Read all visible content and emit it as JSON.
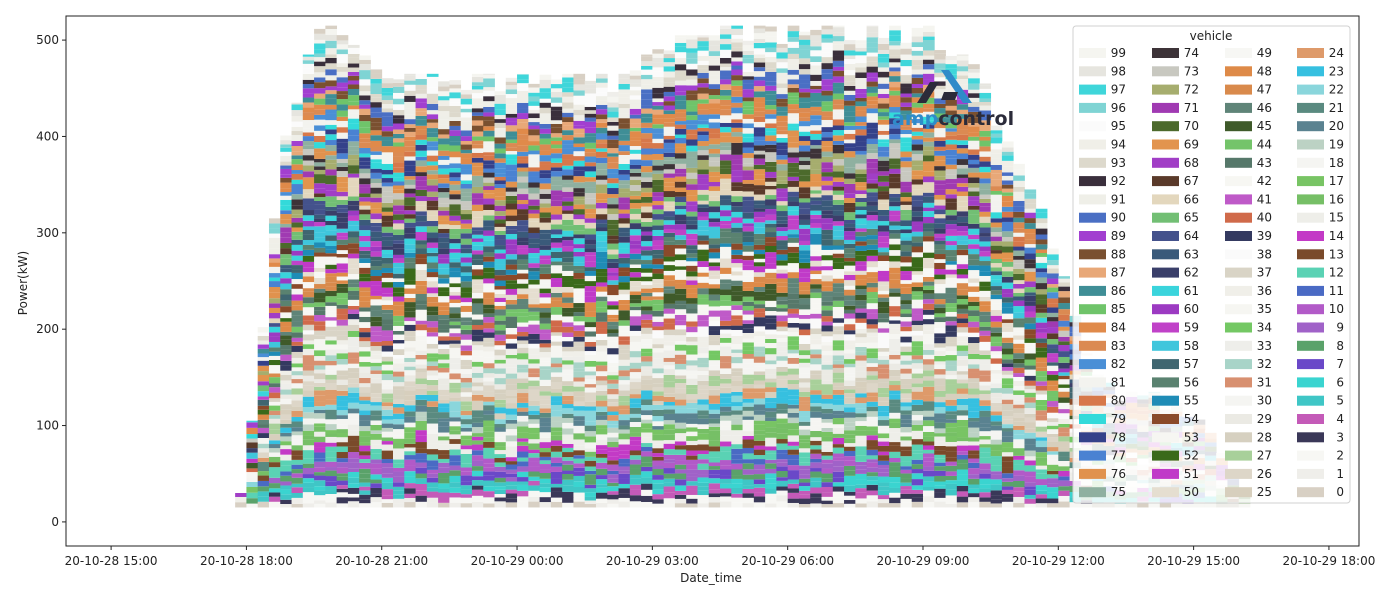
{
  "logo": {
    "text_amp": "amp",
    "text_control": "control",
    "color_dark": "#2b2b3a",
    "color_blue": "#2f8bc9"
  },
  "chart_data": {
    "type": "area",
    "stacked": true,
    "xlabel": "Date_time",
    "ylabel": "Power(kW)",
    "ylim": [
      -25,
      525
    ],
    "yticks": [
      0,
      100,
      200,
      300,
      400,
      500
    ],
    "xlim": [
      "2020-10-28 14:00",
      "2020-10-29 18:40"
    ],
    "xticks": [
      {
        "t": "2020-10-28 15:00",
        "label": "20-10-28 15:00"
      },
      {
        "t": "2020-10-28 18:00",
        "label": "20-10-28 18:00"
      },
      {
        "t": "2020-10-28 21:00",
        "label": "20-10-28 21:00"
      },
      {
        "t": "2020-10-29 00:00",
        "label": "20-10-29 00:00"
      },
      {
        "t": "2020-10-29 03:00",
        "label": "20-10-29 03:00"
      },
      {
        "t": "2020-10-29 06:00",
        "label": "20-10-29 06:00"
      },
      {
        "t": "2020-10-29 09:00",
        "label": "20-10-29 09:00"
      },
      {
        "t": "2020-10-29 12:00",
        "label": "20-10-29 12:00"
      },
      {
        "t": "2020-10-29 15:00",
        "label": "20-10-29 15:00"
      },
      {
        "t": "2020-10-29 18:00",
        "label": "20-10-29 18:00"
      }
    ],
    "time_step": "15 min",
    "profile_start": "2020-10-28 17:45",
    "total_profile": [
      15,
      90,
      190,
      300,
      390,
      420,
      470,
      500,
      500,
      495,
      480,
      470,
      460,
      455,
      450,
      450,
      450,
      450,
      450,
      450,
      450,
      450,
      450,
      450,
      450,
      450,
      450,
      450,
      450,
      450,
      450,
      450,
      450,
      450,
      450,
      460,
      470,
      480,
      490,
      490,
      490,
      490,
      490,
      500,
      500,
      500,
      500,
      500,
      500,
      500,
      500,
      500,
      500,
      500,
      500,
      500,
      500,
      500,
      500,
      500,
      500,
      500,
      490,
      480,
      470,
      460,
      440,
      400,
      380,
      360,
      330,
      310,
      270,
      240,
      200,
      160,
      140,
      130,
      120,
      120,
      120,
      120,
      110,
      110,
      100,
      100,
      80,
      60,
      40,
      20
    ],
    "legend": {
      "title": "vehicle",
      "placement": "upper right",
      "columns": 4,
      "entries": [
        "99",
        "98",
        "97",
        "96",
        "95",
        "94",
        "93",
        "92",
        "91",
        "90",
        "89",
        "88",
        "87",
        "86",
        "85",
        "84",
        "83",
        "82",
        "81",
        "80",
        "79",
        "78",
        "77",
        "76",
        "75",
        "74",
        "73",
        "72",
        "71",
        "70",
        "69",
        "68",
        "67",
        "66",
        "65",
        "64",
        "63",
        "62",
        "61",
        "60",
        "59",
        "58",
        "57",
        "56",
        "55",
        "54",
        "53",
        "52",
        "51",
        "50",
        "49",
        "48",
        "47",
        "46",
        "45",
        "44",
        "43",
        "42",
        "41",
        "40",
        "39",
        "38",
        "37",
        "36",
        "35",
        "34",
        "33",
        "32",
        "31",
        "30",
        "29",
        "28",
        "27",
        "26",
        "25",
        "24",
        "23",
        "22",
        "21",
        "20",
        "19",
        "18",
        "17",
        "16",
        "15",
        "14",
        "13",
        "12",
        "11",
        "10",
        "9",
        "8",
        "7",
        "6",
        "5",
        "4",
        "3",
        "2",
        "1",
        "0"
      ]
    },
    "vehicle_colors": {
      "99": "#f5f5f0",
      "98": "#e6e5df",
      "97": "#3fd6da",
      "96": "#7fd4d4",
      "95": "#fbfbfb",
      "94": "#f0efe8",
      "93": "#ddd9cc",
      "92": "#3a2f3c",
      "91": "#efefe8",
      "90": "#4a6fc4",
      "89": "#a23fd0",
      "88": "#7a5030",
      "87": "#e8a878",
      "86": "#3f8e96",
      "85": "#6fc46a",
      "84": "#e08a4a",
      "83": "#db8a52",
      "82": "#4a8fd6",
      "81": "#f3f3ef",
      "80": "#d7784a",
      "79": "#33dada",
      "78": "#34418a",
      "77": "#4a82d2",
      "76": "#e0924e",
      "75": "#8fb0a0",
      "74": "#3d3338",
      "73": "#c8c8c0",
      "72": "#a6ad6e",
      "71": "#a03ab2",
      "70": "#4c6a2c",
      "69": "#e2944e",
      "68": "#a13ec6",
      "67": "#5a3a2a",
      "66": "#e3d7bd",
      "65": "#72bf74",
      "64": "#44528c",
      "63": "#3a5a7a",
      "62": "#3a3f6a",
      "61": "#3ad4dc",
      "60": "#9c3ac2",
      "59": "#c042c8",
      "58": "#3fc6dc",
      "57": "#3f6670",
      "56": "#5a8270",
      "55": "#1f8cb6",
      "54": "#8a4a2a",
      "53": "#f6f6f2",
      "52": "#3a6a1a",
      "51": "#c03ac8",
      "50": "#e5ded0",
      "49": "#f7f7f4",
      "48": "#de8a48",
      "47": "#d98a4c",
      "46": "#5f8478",
      "45": "#3f5a2a",
      "44": "#74c46a",
      "43": "#56786a",
      "42": "#f7f7f3",
      "41": "#bf5ac8",
      "40": "#d06a4a",
      "39": "#343a60",
      "38": "#fafafa",
      "37": "#d9d4c6",
      "36": "#f0efe9",
      "35": "#f6f6f2",
      "34": "#74c864",
      "33": "#eeeeea",
      "32": "#a8d4c8",
      "31": "#d89070",
      "30": "#f5f5f2",
      "29": "#ebeae4",
      "28": "#d6d0c0",
      "27": "#a8d09a",
      "26": "#ddd6c8",
      "25": "#d7cfbd",
      "24": "#de9a6a",
      "23": "#36c0e0",
      "22": "#8ad6dc",
      "21": "#5a8a80",
      "20": "#5a8290",
      "19": "#bcd2c4",
      "18": "#f5f5f2",
      "17": "#78c464",
      "16": "#76bf66",
      "15": "#eeeee9",
      "14": "#c33ac6",
      "13": "#7a4a2a",
      "12": "#5ad2b4",
      "11": "#4a6ac4",
      "10": "#b25ac8",
      "9": "#a062c8",
      "8": "#5aa26a",
      "7": "#6a48c8",
      "6": "#3ad4d0",
      "5": "#3fc6c6",
      "4": "#c45ab8",
      "3": "#3a3858",
      "2": "#f7f7f4",
      "1": "#efeeea",
      "0": "#d8d0c4"
    }
  }
}
